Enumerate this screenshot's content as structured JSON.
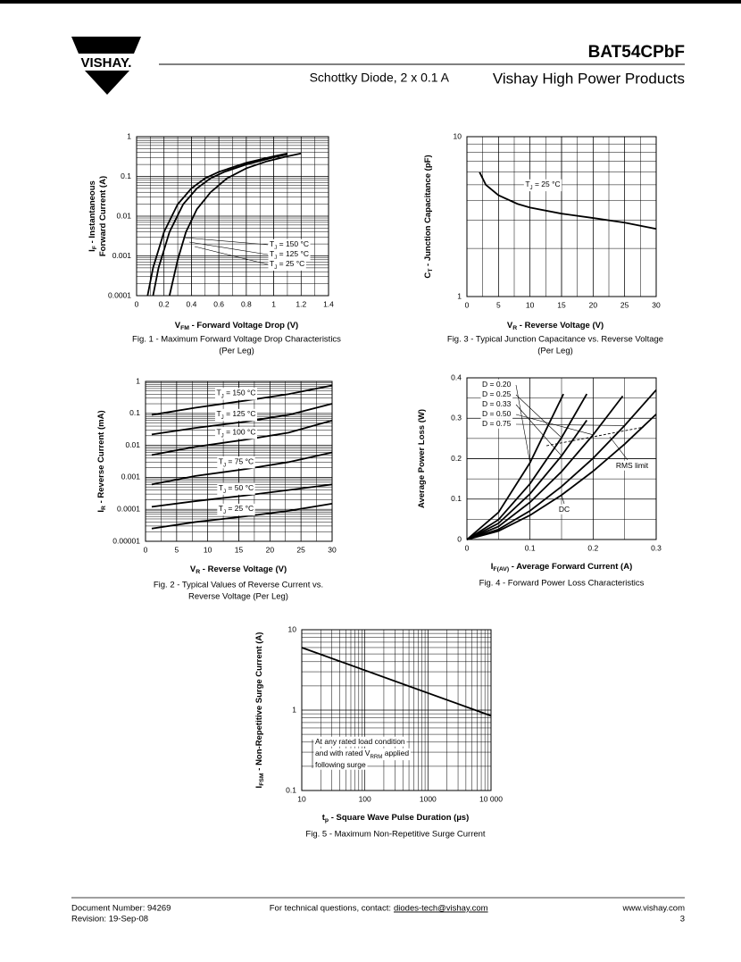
{
  "header": {
    "logo": "VISHAY.",
    "part": "BAT54CPbF",
    "subtitle": "Schottky Diode, 2 x 0.1 A",
    "brand": "Vishay High Power Products"
  },
  "chart_data": [
    {
      "type": "line",
      "color": "#000000",
      "grid": true,
      "ylog": true,
      "caption": [
        "Fig. 1 - Maximum Forward Voltage Drop Characteristics",
        "(Per Leg)"
      ],
      "xlabel": [
        "V",
        "FM",
        " - Forward Voltage Drop (V)"
      ],
      "ylabel": [
        [
          "I",
          "F",
          " - Instantaneous"
        ],
        [
          "Forward Current (A)"
        ]
      ],
      "xlim": [
        0,
        1.4
      ],
      "xticks": [
        0,
        0.2,
        0.4,
        0.6,
        0.8,
        1,
        1.2,
        1.4
      ],
      "ylim": [
        0.0001,
        1
      ],
      "yticks": [
        0.0001,
        0.001,
        0.01,
        0.1,
        1
      ],
      "series": [
        {
          "name": [
            "T",
            "J",
            " = 150 °C"
          ],
          "x": [
            0.08,
            0.12,
            0.2,
            0.3,
            0.4,
            0.5,
            0.6,
            0.8,
            1.0,
            1.1
          ],
          "values": [
            0.0001,
            0.0005,
            0.004,
            0.02,
            0.05,
            0.09,
            0.13,
            0.22,
            0.32,
            0.38
          ]
        },
        {
          "name": [
            "T",
            "J",
            " = 125 °C"
          ],
          "x": [
            0.12,
            0.16,
            0.24,
            0.34,
            0.44,
            0.54,
            0.64,
            0.8,
            1.0,
            1.1
          ],
          "values": [
            0.0001,
            0.0005,
            0.004,
            0.02,
            0.05,
            0.09,
            0.13,
            0.2,
            0.3,
            0.36
          ]
        },
        {
          "name": [
            "T",
            "J",
            " = 25 °C"
          ],
          "x": [
            0.24,
            0.3,
            0.36,
            0.44,
            0.54,
            0.66,
            0.8,
            0.95,
            1.1,
            1.2
          ],
          "values": [
            0.0001,
            0.0008,
            0.004,
            0.015,
            0.04,
            0.09,
            0.16,
            0.24,
            0.32,
            0.38
          ]
        }
      ]
    },
    {
      "type": "line",
      "color": "#000000",
      "grid": true,
      "ylog": true,
      "caption": [
        "Fig. 2 - Typical Values of Reverse Current vs.",
        "Reverse Voltage (Per Leg)"
      ],
      "xlabel": [
        "V",
        "R",
        " - Reverse Voltage (V)"
      ],
      "ylabel": [
        [
          "I",
          "R",
          " - Reverse Current (mA)"
        ]
      ],
      "xlim": [
        0,
        30
      ],
      "xticks": [
        0,
        5,
        10,
        15,
        20,
        25,
        30
      ],
      "ylim": [
        1e-05,
        1
      ],
      "yticks": [
        1e-05,
        0.0001,
        0.001,
        0.01,
        0.1,
        1
      ],
      "series": [
        {
          "name": [
            "T",
            "J",
            " = 150 °C"
          ],
          "x": [
            1,
            8,
            16,
            23,
            30
          ],
          "values": [
            0.09,
            0.15,
            0.25,
            0.4,
            0.75
          ]
        },
        {
          "name": [
            "T",
            "J",
            " = 125 °C"
          ],
          "x": [
            1,
            8,
            16,
            23,
            30
          ],
          "values": [
            0.022,
            0.035,
            0.055,
            0.09,
            0.2
          ]
        },
        {
          "name": [
            "T",
            "J",
            " = 100 °C"
          ],
          "x": [
            1,
            8,
            16,
            23,
            30
          ],
          "values": [
            0.005,
            0.009,
            0.015,
            0.025,
            0.06
          ]
        },
        {
          "name": [
            "T",
            "J",
            " = 75 °C"
          ],
          "x": [
            1,
            8,
            16,
            23,
            30
          ],
          "values": [
            0.0006,
            0.0011,
            0.0018,
            0.003,
            0.006
          ]
        },
        {
          "name": [
            "T",
            "J",
            " = 50 °C"
          ],
          "x": [
            1,
            8,
            16,
            23,
            30
          ],
          "values": [
            0.00012,
            0.00018,
            0.00027,
            0.0004,
            0.0006
          ]
        },
        {
          "name": [
            "T",
            "J",
            " = 25 °C"
          ],
          "x": [
            1,
            8,
            16,
            23,
            30
          ],
          "values": [
            2.5e-05,
            4e-05,
            6e-05,
            9e-05,
            0.00015
          ]
        }
      ]
    },
    {
      "type": "line",
      "color": "#000000",
      "grid": true,
      "ylog": true,
      "caption": [
        "Fig. 3 - Typical Junction Capacitance vs. Reverse Voltage",
        "(Per Leg)"
      ],
      "xlabel": [
        "V",
        "R",
        " - Reverse Voltage (V)"
      ],
      "ylabel": [
        [
          "C",
          "T",
          " - Junction Capacitance (pF)"
        ]
      ],
      "xlim": [
        0,
        30
      ],
      "xticks": [
        0,
        5,
        10,
        15,
        20,
        25,
        30
      ],
      "ylim": [
        1,
        10
      ],
      "yticks": [
        1,
        10
      ],
      "series": [
        {
          "name": [
            "T",
            "J",
            " = 25 °C"
          ],
          "x": [
            2,
            3,
            5,
            8,
            10,
            15,
            20,
            25,
            30
          ],
          "values": [
            6,
            5,
            4.3,
            3.8,
            3.6,
            3.3,
            3.1,
            2.9,
            2.65
          ]
        }
      ]
    },
    {
      "type": "line",
      "color": "#000000",
      "grid": true,
      "caption": [
        "Fig. 4 - Forward Power Loss Characteristics"
      ],
      "xlabel": [
        "I",
        "F(AV)",
        " - Average Forward Current (A)"
      ],
      "ylabel": [
        [
          "Average Power Loss (W)"
        ]
      ],
      "xlim": [
        0,
        0.3
      ],
      "xticks": [
        0,
        0.1,
        0.2,
        0.3
      ],
      "ylim": [
        0,
        0.4
      ],
      "yticks": [
        0,
        0.1,
        0.2,
        0.3,
        0.4
      ],
      "series": [
        {
          "name": [
            "D = 0.20"
          ],
          "x": [
            0,
            0.05,
            0.1,
            0.153
          ],
          "values": [
            0,
            0.067,
            0.19,
            0.36
          ]
        },
        {
          "name": [
            "D = 0.25"
          ],
          "x": [
            0,
            0.05,
            0.1,
            0.15,
            0.19
          ],
          "values": [
            0,
            0.049,
            0.138,
            0.252,
            0.36
          ]
        },
        {
          "name": [
            "D = 0.33"
          ],
          "x": [
            0,
            0.05,
            0.1,
            0.15,
            0.19
          ],
          "values": [
            0,
            0.04,
            0.113,
            0.207,
            0.295
          ]
        },
        {
          "name": [
            "D = 0.50"
          ],
          "x": [
            0,
            0.05,
            0.1,
            0.15,
            0.2,
            0.247
          ],
          "values": [
            0,
            0.032,
            0.092,
            0.168,
            0.259,
            0.355
          ]
        },
        {
          "name": [
            "D = 0.75"
          ],
          "x": [
            0,
            0.05,
            0.1,
            0.15,
            0.2,
            0.25,
            0.3
          ],
          "values": [
            0,
            0.025,
            0.071,
            0.131,
            0.201,
            0.282,
            0.37
          ]
        },
        {
          "name": [
            "DC"
          ],
          "x": [
            0,
            0.05,
            0.1,
            0.15,
            0.2,
            0.25,
            0.3
          ],
          "values": [
            0,
            0.021,
            0.06,
            0.11,
            0.169,
            0.236,
            0.31
          ]
        },
        {
          "name": [
            "RMS limit"
          ],
          "dashed": true,
          "x": [
            0.126,
            0.28
          ],
          "values": [
            0.232,
            0.278
          ]
        }
      ]
    },
    {
      "type": "line",
      "color": "#000000",
      "grid": true,
      "xlog": true,
      "ylog": true,
      "caption": [
        "Fig. 5 - Maximum Non-Repetitive Surge Current"
      ],
      "xlabel": [
        "t",
        "p",
        " - Square Wave Pulse Duration (µs)"
      ],
      "ylabel": [
        [
          "I",
          "FSM",
          " - Non-Repetitive Surge Current (A)"
        ]
      ],
      "xlim": [
        10,
        10000
      ],
      "xticks": [
        10,
        100,
        1000,
        {
          "value": 10000,
          "label": "10 000"
        }
      ],
      "ylim": [
        0.1,
        10
      ],
      "yticks": [
        0.1,
        1,
        10
      ],
      "annotation": [
        [
          "At any rated load condition"
        ],
        [
          "and with rated V",
          "RRM",
          " applied"
        ],
        [
          "following surge"
        ]
      ],
      "series": [
        {
          "x": [
            10,
            10000
          ],
          "values": [
            6,
            0.85
          ]
        }
      ]
    }
  ],
  "footer": {
    "doc": "Document Number: 94269",
    "revision": "Revision: 19-Sep-08",
    "contact": "For technical questions, contact:",
    "email": "diodes-tech@vishay.com",
    "site": "www.vishay.com",
    "page": "3"
  }
}
